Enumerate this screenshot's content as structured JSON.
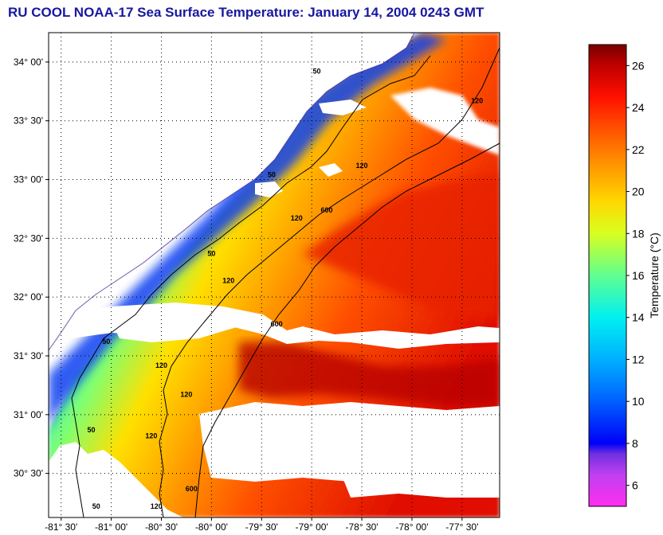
{
  "title": "RU COOL  NOAA-17  Sea Surface Temperature:  January 14, 2004 0243 GMT",
  "map": {
    "lon_range": [
      -81.625,
      -77.125
    ],
    "lat_range": [
      30.125,
      34.25
    ],
    "lat_ticks": [
      {
        "value": 34.0,
        "label": "34° 00'"
      },
      {
        "value": 33.5,
        "label": "33° 30'"
      },
      {
        "value": 33.0,
        "label": "33° 00'"
      },
      {
        "value": 32.5,
        "label": "32° 30'"
      },
      {
        "value": 32.0,
        "label": "32° 00'"
      },
      {
        "value": 31.5,
        "label": "31° 30'"
      },
      {
        "value": 31.0,
        "label": "31° 00'"
      },
      {
        "value": 30.5,
        "label": "30° 30'"
      }
    ],
    "lon_ticks": [
      {
        "value": -81.5,
        "label": "-81° 30'"
      },
      {
        "value": -81.0,
        "label": "-81° 00'"
      },
      {
        "value": -80.5,
        "label": "-80° 30'"
      },
      {
        "value": -80.0,
        "label": "-80° 00'"
      },
      {
        "value": -79.5,
        "label": "-79° 30'"
      },
      {
        "value": -79.0,
        "label": "-79° 00'"
      },
      {
        "value": -78.5,
        "label": "-78° 30'"
      },
      {
        "value": -78.0,
        "label": "-78° 00'"
      },
      {
        "value": -77.5,
        "label": "-77° 30'"
      }
    ],
    "grid": "dotted",
    "land_color": "#ffffff",
    "cloud_color": "#ffffff",
    "isobath_labels": [
      {
        "text": "50",
        "lon": -78.95,
        "lat": 33.9
      },
      {
        "text": "120",
        "lon": -77.35,
        "lat": 33.65
      },
      {
        "text": "50",
        "lon": -79.4,
        "lat": 33.02
      },
      {
        "text": "120",
        "lon": -78.5,
        "lat": 33.1
      },
      {
        "text": "120",
        "lon": -79.15,
        "lat": 32.65
      },
      {
        "text": "600",
        "lon": -78.85,
        "lat": 32.72
      },
      {
        "text": "50",
        "lon": -80.0,
        "lat": 32.35
      },
      {
        "text": "120",
        "lon": -79.83,
        "lat": 32.12
      },
      {
        "text": "600",
        "lon": -79.35,
        "lat": 31.75
      },
      {
        "text": "50",
        "lon": -81.05,
        "lat": 31.6
      },
      {
        "text": "120",
        "lon": -80.5,
        "lat": 31.4
      },
      {
        "text": "120",
        "lon": -80.25,
        "lat": 31.15
      },
      {
        "text": "50",
        "lon": -81.2,
        "lat": 30.85
      },
      {
        "text": "120",
        "lon": -80.6,
        "lat": 30.8
      },
      {
        "text": "50",
        "lon": -81.15,
        "lat": 30.2
      },
      {
        "text": "120",
        "lon": -80.55,
        "lat": 30.2
      },
      {
        "text": "600",
        "lon": -80.2,
        "lat": 30.35
      }
    ]
  },
  "colorbar": {
    "vmin": 5.0,
    "vmax": 27.0,
    "ticks": [
      {
        "value": 6,
        "label": "6"
      },
      {
        "value": 8,
        "label": "8"
      },
      {
        "value": 10,
        "label": "10"
      },
      {
        "value": 12,
        "label": "12"
      },
      {
        "value": 14,
        "label": "14"
      },
      {
        "value": 16,
        "label": "16"
      },
      {
        "value": 18,
        "label": "18"
      },
      {
        "value": 20,
        "label": "20"
      },
      {
        "value": 22,
        "label": "22"
      },
      {
        "value": 24,
        "label": "24"
      },
      {
        "value": 26,
        "label": "26"
      }
    ],
    "title": "Temperature (°C)",
    "stops": [
      {
        "value": 5.0,
        "color": "#ff2df0"
      },
      {
        "value": 6.5,
        "color": "#c040f0"
      },
      {
        "value": 7.5,
        "color": "#7030e0"
      },
      {
        "value": 8.0,
        "color": "#0000f8"
      },
      {
        "value": 10.0,
        "color": "#0060ff"
      },
      {
        "value": 12.0,
        "color": "#00b0ff"
      },
      {
        "value": 14.0,
        "color": "#00f0f0"
      },
      {
        "value": 16.0,
        "color": "#60ff90"
      },
      {
        "value": 18.0,
        "color": "#d8ff20"
      },
      {
        "value": 19.5,
        "color": "#ffd800"
      },
      {
        "value": 21.0,
        "color": "#ffa000"
      },
      {
        "value": 23.0,
        "color": "#ff5000"
      },
      {
        "value": 24.5,
        "color": "#ff1000"
      },
      {
        "value": 26.0,
        "color": "#c00000"
      },
      {
        "value": 27.0,
        "color": "#7a0000"
      }
    ]
  }
}
